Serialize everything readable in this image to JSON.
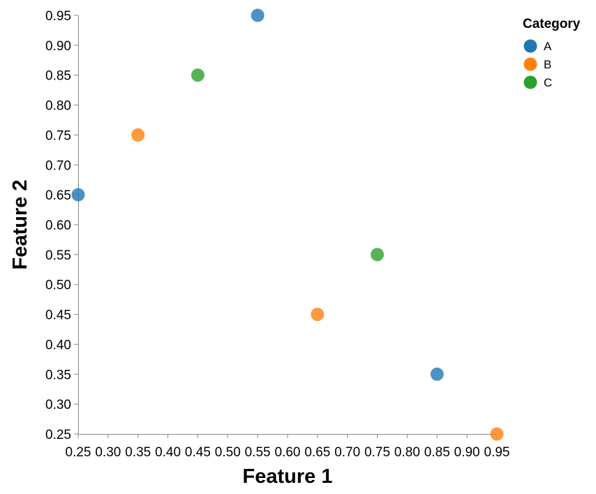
{
  "chart_data": {
    "type": "scatter",
    "title": "",
    "xlabel": "Feature 1",
    "ylabel": "Feature 2",
    "xlim": [
      0.25,
      0.95
    ],
    "ylim": [
      0.25,
      0.95
    ],
    "x_ticks": [
      "0.25",
      "0.30",
      "0.35",
      "0.40",
      "0.45",
      "0.50",
      "0.55",
      "0.60",
      "0.65",
      "0.70",
      "0.75",
      "0.80",
      "0.85",
      "0.90",
      "0.95"
    ],
    "y_ticks": [
      "0.25",
      "0.30",
      "0.35",
      "0.40",
      "0.45",
      "0.50",
      "0.55",
      "0.60",
      "0.65",
      "0.70",
      "0.75",
      "0.80",
      "0.85",
      "0.90",
      "0.95"
    ],
    "grid": false,
    "legend": {
      "title": "Category",
      "placement": "top-right",
      "entries": [
        {
          "label": "A",
          "color": "#1f77b4"
        },
        {
          "label": "B",
          "color": "#ff7f0e"
        },
        {
          "label": "C",
          "color": "#2ca02c"
        }
      ]
    },
    "series": [
      {
        "name": "A",
        "color": "#1f77b4",
        "points": [
          {
            "x": 0.25,
            "y": 0.65
          },
          {
            "x": 0.55,
            "y": 0.95
          },
          {
            "x": 0.85,
            "y": 0.35
          }
        ]
      },
      {
        "name": "B",
        "color": "#ff7f0e",
        "points": [
          {
            "x": 0.35,
            "y": 0.75
          },
          {
            "x": 0.65,
            "y": 0.45
          },
          {
            "x": 0.95,
            "y": 0.25
          }
        ]
      },
      {
        "name": "C",
        "color": "#2ca02c",
        "points": [
          {
            "x": 0.45,
            "y": 0.85
          },
          {
            "x": 0.75,
            "y": 0.55
          }
        ]
      }
    ]
  }
}
